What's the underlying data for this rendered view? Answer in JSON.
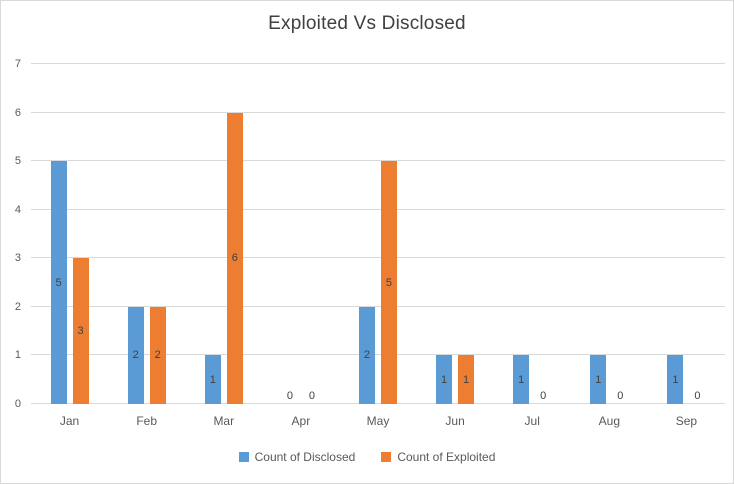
{
  "title": "Exploited Vs Disclosed",
  "colors": {
    "disclosed": "#5B9BD5",
    "exploited": "#ED7D31",
    "grid": "#D9D9D9",
    "axis_text": "#595959",
    "title_text": "#404040"
  },
  "chart_data": {
    "type": "bar",
    "title": "Exploited Vs Disclosed",
    "categories": [
      "Jan",
      "Feb",
      "Mar",
      "Apr",
      "May",
      "Jun",
      "Jul",
      "Aug",
      "Sep"
    ],
    "series": [
      {
        "name": "Count of Disclosed",
        "color_key": "disclosed",
        "values": [
          5,
          2,
          1,
          0,
          2,
          1,
          1,
          1,
          1
        ]
      },
      {
        "name": "Count of Exploited",
        "color_key": "exploited",
        "values": [
          3,
          2,
          6,
          0,
          5,
          1,
          0,
          0,
          0
        ]
      }
    ],
    "xlabel": "",
    "ylabel": "",
    "ylim": [
      0,
      7
    ],
    "yticks": [
      0,
      1,
      2,
      3,
      4,
      5,
      6,
      7
    ],
    "grid": true,
    "data_labels": true,
    "legend_position": "bottom"
  }
}
